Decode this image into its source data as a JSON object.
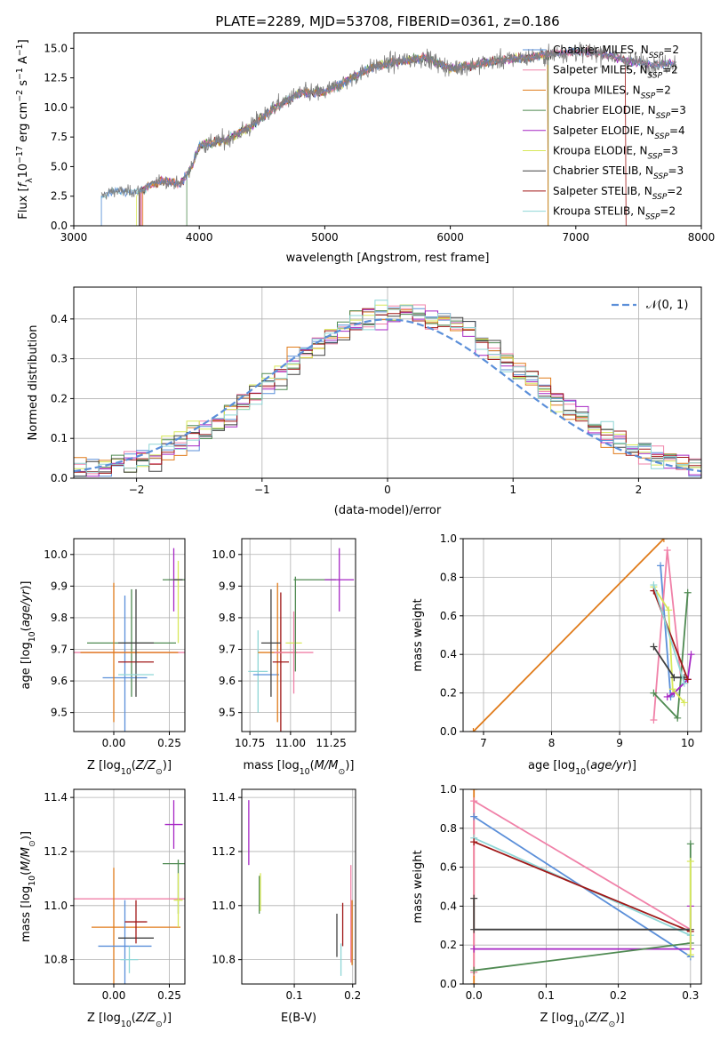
{
  "chart_data": [
    {
      "id": "spectrum",
      "type": "line",
      "title": "PLATE=2289, MJD=53708, FIBERID=0361, z=0.186",
      "xlabel": "wavelength [Angstrom, rest frame]",
      "ylabel": "Flux [f_λ 10^-17 erg cm^-2 s^-1 A^-1]",
      "xlim": [
        3000,
        8000
      ],
      "ylim": [
        0,
        16.3
      ],
      "xticks": [
        "3000",
        "4000",
        "5000",
        "6000",
        "7000",
        "8000"
      ],
      "yticks": [
        "0.0",
        "2.5",
        "5.0",
        "7.5",
        "10.0",
        "12.5",
        "15.0"
      ],
      "grid": false,
      "legend_position": "top-right",
      "legend": [
        {
          "label": "Chabrier MILES, N",
          "sub": "SSP",
          "suffix": "=2",
          "color": "#5b8fd9"
        },
        {
          "label": "Salpeter MILES, N",
          "sub": "SSP",
          "suffix": "=2",
          "color": "#f081a8"
        },
        {
          "label": "Kroupa MILES, N",
          "sub": "SSP",
          "suffix": "=2",
          "color": "#e07b1a"
        },
        {
          "label": "Chabrier ELODIE, N",
          "sub": "SSP",
          "suffix": "=3",
          "color": "#4f8a52"
        },
        {
          "label": "Salpeter ELODIE, N",
          "sub": "SSP",
          "suffix": "=4",
          "color": "#a626c4"
        },
        {
          "label": "Kroupa ELODIE, N",
          "sub": "SSP",
          "suffix": "=3",
          "color": "#d8e85a"
        },
        {
          "label": "Chabrier STELIB, N",
          "sub": "SSP",
          "suffix": "=3",
          "color": "#404040"
        },
        {
          "label": "Salpeter STELIB, N",
          "sub": "SSP",
          "suffix": "=2",
          "color": "#a01818"
        },
        {
          "label": "Kroupa STELIB, N",
          "sub": "SSP",
          "suffix": "=2",
          "color": "#8fd6d6"
        }
      ],
      "continuum": [
        [
          3220,
          2.5
        ],
        [
          3300,
          2.9
        ],
        [
          3500,
          2.9
        ],
        [
          3700,
          3.8
        ],
        [
          3850,
          3.5
        ],
        [
          3950,
          5.2
        ],
        [
          4000,
          6.8
        ],
        [
          4200,
          7.2
        ],
        [
          4400,
          8.3
        ],
        [
          4600,
          10.0
        ],
        [
          4800,
          11.2
        ],
        [
          5000,
          11.3
        ],
        [
          5200,
          12.4
        ],
        [
          5400,
          13.5
        ],
        [
          5600,
          13.9
        ],
        [
          5800,
          14.2
        ],
        [
          6000,
          13.3
        ],
        [
          6200,
          13.6
        ],
        [
          6400,
          14.0
        ],
        [
          6600,
          14.2
        ],
        [
          6800,
          14.5
        ],
        [
          7000,
          14.7
        ],
        [
          7200,
          14.6
        ],
        [
          7400,
          14.0
        ],
        [
          7600,
          13.6
        ],
        [
          7800,
          13.7
        ]
      ],
      "data_start": 3220,
      "data_end": 7800,
      "data_color": "#7f7f7f"
    },
    {
      "id": "residuals",
      "type": "histogram",
      "xlabel": "(data-model)/error",
      "ylabel": "Normed distribution",
      "xlim": [
        -2.5,
        2.5
      ],
      "ylim": [
        0,
        0.48
      ],
      "xticks": [
        -2,
        -1,
        0,
        1,
        2
      ],
      "xtick_labels": [
        "−2",
        "−1",
        "0",
        "1",
        "2"
      ],
      "yticks": [
        0.0,
        0.1,
        0.2,
        0.3,
        0.4
      ],
      "ytick_labels": [
        "0.0",
        "0.1",
        "0.2",
        "0.3",
        "0.4"
      ],
      "grid": true,
      "bin_width": 0.1,
      "gaussian_label": "𝒩(0, 1)",
      "gaussian_color": "#5b8fd9"
    },
    {
      "id": "age_vs_z",
      "type": "errorbar",
      "xlabel": "Z [log10(Z/Z⊙)]",
      "ylabel": "age [log10(age/yr)]",
      "xlim": [
        -0.18,
        0.32
      ],
      "ylim": [
        9.44,
        10.05
      ],
      "xticks": [
        0.0,
        0.25
      ],
      "xtick_labels": [
        "0.00",
        "0.25"
      ],
      "yticks": [
        9.5,
        9.6,
        9.7,
        9.8,
        9.9,
        10.0
      ],
      "ytick_labels": [
        "9.5",
        "9.6",
        "9.7",
        "9.8",
        "9.9",
        "10.0"
      ],
      "grid": true,
      "points": [
        {
          "x": 0.1,
          "xerr": 0.3,
          "y": 9.69,
          "yerr": 0.0,
          "color": "#f081a8"
        },
        {
          "x": 0.08,
          "xerr": 0.2,
          "y": 9.72,
          "yerr": 0.17,
          "color": "#4f8a52"
        },
        {
          "x": 0.05,
          "xerr": 0.1,
          "y": 9.61,
          "yerr": 0.26,
          "color": "#5b8fd9"
        },
        {
          "x": 0.0,
          "xerr": 0.0,
          "y": 9.69,
          "yerr": 0.22,
          "color": "#e07b1a"
        },
        {
          "x": 0.07,
          "xerr": 0.22,
          "y": 9.69,
          "yerr": 0.0,
          "color": "#e07b1a"
        },
        {
          "x": 0.1,
          "xerr": 0.08,
          "y": 9.66,
          "yerr": 0.0,
          "color": "#a01818"
        },
        {
          "x": 0.1,
          "xerr": 0.08,
          "y": 9.72,
          "yerr": 0.17,
          "color": "#404040"
        },
        {
          "x": 0.1,
          "xerr": 0.08,
          "y": 9.62,
          "yerr": 0.0,
          "color": "#8fd6d6"
        },
        {
          "x": 0.27,
          "xerr": 0.02,
          "y": 9.92,
          "yerr": 0.1,
          "color": "#a626c4"
        },
        {
          "x": 0.27,
          "xerr": 0.05,
          "y": 9.92,
          "yerr": 0.0,
          "color": "#4f8a52"
        },
        {
          "x": 0.29,
          "xerr": 0.0,
          "y": 9.85,
          "yerr": 0.13,
          "color": "#d8e85a"
        },
        {
          "x": 0.29,
          "xerr": 0.02,
          "y": 9.92,
          "yerr": 0.0,
          "color": "#404040"
        }
      ]
    },
    {
      "id": "age_vs_mass",
      "type": "errorbar",
      "xlabel": "mass [log10(M/M⊙)]",
      "ylabel": "",
      "xlim": [
        10.7,
        11.4
      ],
      "ylim": [
        9.44,
        10.05
      ],
      "xticks": [
        10.75,
        11.0,
        11.25
      ],
      "xtick_labels": [
        "10.75",
        "11.00",
        "11.25"
      ],
      "yticks": [
        9.5,
        9.6,
        9.7,
        9.8,
        9.9,
        10.0
      ],
      "ytick_labels": [
        "9.5",
        "9.6",
        "9.7",
        "9.8",
        "9.9",
        "10.0"
      ],
      "grid": true,
      "points": [
        {
          "x": 10.8,
          "xerr": 0.06,
          "y": 9.63,
          "yerr": 0.13,
          "color": "#8fd6d6"
        },
        {
          "x": 10.85,
          "xerr": 0.08,
          "y": 9.62,
          "yerr": 0.0,
          "color": "#5b8fd9"
        },
        {
          "x": 10.92,
          "xerr": 0.12,
          "y": 9.69,
          "yerr": 0.22,
          "color": "#e07b1a"
        },
        {
          "x": 10.94,
          "xerr": 0.05,
          "y": 9.66,
          "yerr": 0.22,
          "color": "#a01818"
        },
        {
          "x": 10.88,
          "xerr": 0.06,
          "y": 9.72,
          "yerr": 0.17,
          "color": "#404040"
        },
        {
          "x": 11.02,
          "xerr": 0.12,
          "y": 9.69,
          "yerr": 0.13,
          "color": "#f081a8"
        },
        {
          "x": 11.02,
          "xerr": 0.05,
          "y": 9.72,
          "yerr": 0.0,
          "color": "#d8e85a"
        },
        {
          "x": 11.15,
          "xerr": 0.13,
          "y": 9.92,
          "yerr": 0.0,
          "color": "#4f8a52"
        },
        {
          "x": 11.03,
          "xerr": 0.0,
          "y": 9.78,
          "yerr": 0.15,
          "color": "#4f8a52"
        },
        {
          "x": 11.3,
          "xerr": 0.09,
          "y": 9.92,
          "yerr": 0.1,
          "color": "#a626c4"
        }
      ]
    },
    {
      "id": "weight_vs_age",
      "type": "line",
      "xlabel": "age [log10(age/yr)]",
      "ylabel": "mass weight",
      "xlim": [
        6.7,
        10.2
      ],
      "ylim": [
        0,
        1.0
      ],
      "xticks": [
        7,
        8,
        9,
        10
      ],
      "xtick_labels": [
        "7",
        "8",
        "9",
        "10"
      ],
      "yticks": [
        0.0,
        0.2,
        0.4,
        0.6,
        0.8,
        1.0
      ],
      "ytick_labels": [
        "0.0",
        "0.2",
        "0.4",
        "0.6",
        "0.8",
        "1.0"
      ],
      "grid": true,
      "series": [
        {
          "color": "#e07b1a",
          "x": [
            6.85,
            9.65
          ],
          "y": [
            0.0,
            1.0
          ]
        },
        {
          "color": "#5b8fd9",
          "x": [
            9.6,
            9.75,
            9.8,
            10.0
          ],
          "y": [
            0.86,
            0.18,
            0.2,
            0.27
          ]
        },
        {
          "color": "#f081a8",
          "x": [
            9.5,
            9.7,
            9.9
          ],
          "y": [
            0.06,
            0.94,
            0.28
          ]
        },
        {
          "color": "#4f8a52",
          "x": [
            9.5,
            9.85,
            10.0
          ],
          "y": [
            0.2,
            0.07,
            0.72
          ]
        },
        {
          "color": "#a626c4",
          "x": [
            9.7,
            9.8,
            10.0,
            10.05
          ],
          "y": [
            0.18,
            0.2,
            0.27,
            0.4
          ]
        },
        {
          "color": "#d8e85a",
          "x": [
            9.5,
            9.72,
            9.78,
            9.95
          ],
          "y": [
            0.75,
            0.63,
            0.22,
            0.15
          ]
        },
        {
          "color": "#404040",
          "x": [
            9.5,
            9.8,
            9.95
          ],
          "y": [
            0.44,
            0.28,
            0.28
          ]
        },
        {
          "color": "#a01818",
          "x": [
            9.5,
            10.0
          ],
          "y": [
            0.73,
            0.27
          ]
        },
        {
          "color": "#8fd6d6",
          "x": [
            9.5,
            9.95
          ],
          "y": [
            0.76,
            0.25
          ]
        }
      ]
    },
    {
      "id": "mass_vs_z",
      "type": "errorbar",
      "xlabel": "Z [log10(Z/Z⊙)]",
      "ylabel": "mass [log10(M/M⊙)]",
      "xlim": [
        -0.18,
        0.32
      ],
      "ylim": [
        10.71,
        11.43
      ],
      "xticks": [
        0.0,
        0.25
      ],
      "xtick_labels": [
        "0.00",
        "0.25"
      ],
      "yticks": [
        10.8,
        11.0,
        11.2,
        11.4
      ],
      "ytick_labels": [
        "10.8",
        "11.0",
        "11.2",
        "11.4"
      ],
      "grid": true,
      "points": [
        {
          "x": 0.1,
          "xerr": 0.3,
          "y": 11.025,
          "yerr": 0.0,
          "color": "#f081a8"
        },
        {
          "x": 0.1,
          "xerr": 0.2,
          "y": 10.92,
          "yerr": 0.0,
          "color": "#e07b1a"
        },
        {
          "x": 0.0,
          "xerr": 0.0,
          "y": 10.92,
          "yerr": 0.22,
          "color": "#e07b1a"
        },
        {
          "x": 0.05,
          "xerr": 0.12,
          "y": 10.85,
          "yerr": 0.17,
          "color": "#5b8fd9"
        },
        {
          "x": 0.1,
          "xerr": 0.08,
          "y": 10.88,
          "yerr": 0.0,
          "color": "#404040"
        },
        {
          "x": 0.1,
          "xerr": 0.05,
          "y": 10.94,
          "yerr": 0.08,
          "color": "#a01818"
        },
        {
          "x": 0.07,
          "xerr": 0.04,
          "y": 10.8,
          "yerr": 0.05,
          "color": "#8fd6d6"
        },
        {
          "x": 0.27,
          "xerr": 0.04,
          "y": 11.3,
          "yerr": 0.09,
          "color": "#a626c4"
        },
        {
          "x": 0.27,
          "xerr": 0.05,
          "y": 11.155,
          "yerr": 0.0,
          "color": "#4f8a52"
        },
        {
          "x": 0.29,
          "xerr": 0.0,
          "y": 11.07,
          "yerr": 0.1,
          "color": "#4f8a52"
        },
        {
          "x": 0.29,
          "xerr": 0.02,
          "y": 11.02,
          "yerr": 0.1,
          "color": "#d8e85a"
        }
      ]
    },
    {
      "id": "mass_vs_ebv",
      "type": "errorbar",
      "xlabel": "E(B-V)",
      "ylabel": "",
      "xlim": [
        0.01,
        0.205
      ],
      "ylim": [
        10.71,
        11.43
      ],
      "xticks": [
        0.1,
        0.2
      ],
      "xtick_labels": [
        "0.1",
        "0.2"
      ],
      "yticks": [
        10.8,
        11.0,
        11.2,
        11.4
      ],
      "ytick_labels": [
        "10.8",
        "11.0",
        "11.2",
        "11.4"
      ],
      "grid": true,
      "points": [
        {
          "x": 0.022,
          "xerr": 0.0,
          "y": 11.27,
          "yerr": 0.12,
          "color": "#a626c4"
        },
        {
          "x": 0.04,
          "xerr": 0.0,
          "y": 11.04,
          "yerr": 0.07,
          "color": "#4f8a52"
        },
        {
          "x": 0.042,
          "xerr": 0.0,
          "y": 11.05,
          "yerr": 0.07,
          "color": "#d8e85a"
        },
        {
          "x": 0.173,
          "xerr": 0.0,
          "y": 10.89,
          "yerr": 0.08,
          "color": "#404040"
        },
        {
          "x": 0.18,
          "xerr": 0.0,
          "y": 10.8,
          "yerr": 0.06,
          "color": "#8fd6d6"
        },
        {
          "x": 0.183,
          "xerr": 0.0,
          "y": 10.93,
          "yerr": 0.08,
          "color": "#a01818"
        },
        {
          "x": 0.197,
          "xerr": 0.0,
          "y": 10.97,
          "yerr": 0.18,
          "color": "#f081a8"
        },
        {
          "x": 0.199,
          "xerr": 0.0,
          "y": 10.9,
          "yerr": 0.12,
          "color": "#e07b1a"
        }
      ]
    },
    {
      "id": "weight_vs_z",
      "type": "line",
      "xlabel": "Z [log10(Z/Z⊙)]",
      "ylabel": "mass weight",
      "xlim": [
        -0.015,
        0.315
      ],
      "ylim": [
        0,
        1.0
      ],
      "xticks": [
        0.0,
        0.1,
        0.2,
        0.3
      ],
      "xtick_labels": [
        "0.0",
        "0.1",
        "0.2",
        "0.3"
      ],
      "yticks": [
        0.0,
        0.2,
        0.4,
        0.6,
        0.8,
        1.0
      ],
      "ytick_labels": [
        "0.0",
        "0.2",
        "0.4",
        "0.6",
        "0.8",
        "1.0"
      ],
      "grid": true,
      "series": [
        {
          "color": "#e07b1a",
          "x": [
            0.0,
            0.0
          ],
          "y": [
            0.0,
            1.0
          ]
        },
        {
          "color": "#f081a8",
          "x": [
            0.0,
            0.0,
            0.3
          ],
          "y": [
            0.06,
            0.94,
            0.28
          ]
        },
        {
          "color": "#5b8fd9",
          "x": [
            0.0,
            0.3
          ],
          "y": [
            0.86,
            0.14
          ]
        },
        {
          "color": "#8fd6d6",
          "x": [
            0.0,
            0.3
          ],
          "y": [
            0.75,
            0.25
          ]
        },
        {
          "color": "#a01818",
          "x": [
            0.0,
            0.3
          ],
          "y": [
            0.73,
            0.27
          ]
        },
        {
          "color": "#404040",
          "x": [
            0.0,
            0.0,
            0.3
          ],
          "y": [
            0.44,
            0.28,
            0.28
          ]
        },
        {
          "color": "#a626c4",
          "x": [
            0.0,
            0.3,
            0.3
          ],
          "y": [
            0.18,
            0.18,
            0.4
          ]
        },
        {
          "color": "#4f8a52",
          "x": [
            0.0,
            0.3,
            0.3
          ],
          "y": [
            0.07,
            0.21,
            0.72
          ]
        },
        {
          "color": "#d8e85a",
          "x": [
            0.3,
            0.3
          ],
          "y": [
            0.15,
            0.63
          ]
        }
      ]
    }
  ]
}
